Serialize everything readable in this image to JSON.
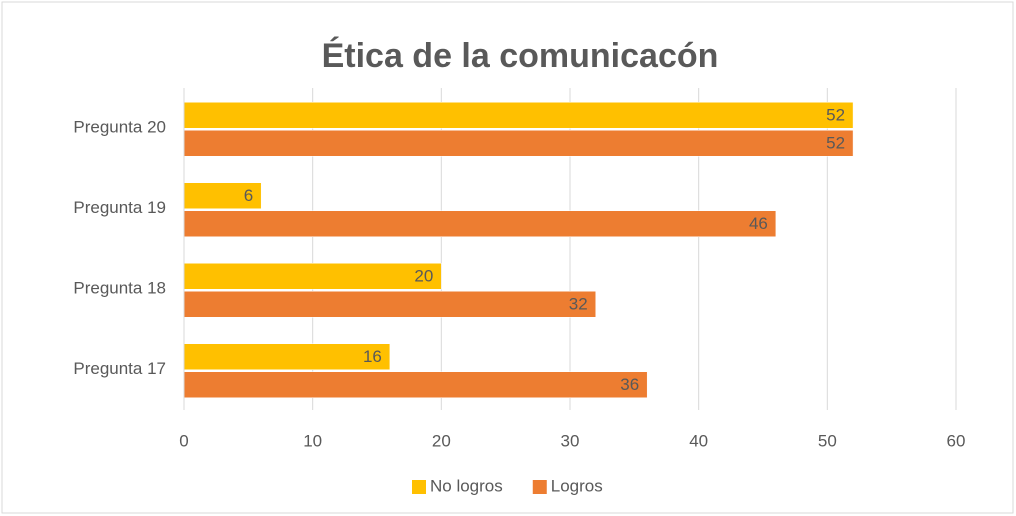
{
  "chart_data": {
    "type": "bar",
    "orientation": "horizontal",
    "title": "Ética de la comunicacón",
    "categories": [
      "Pregunta 17",
      "Pregunta 18",
      "Pregunta 19",
      "Pregunta 20"
    ],
    "series": [
      {
        "name": "No logros",
        "color": "#FFC000",
        "values": [
          16,
          20,
          6,
          52
        ]
      },
      {
        "name": "Logros",
        "color": "#ED7D31",
        "values": [
          36,
          32,
          46,
          52
        ]
      }
    ],
    "xlim": [
      0,
      60
    ],
    "xticks": [
      0,
      10,
      20,
      30,
      40,
      50,
      60
    ],
    "grid": true,
    "legend": "bottom"
  }
}
